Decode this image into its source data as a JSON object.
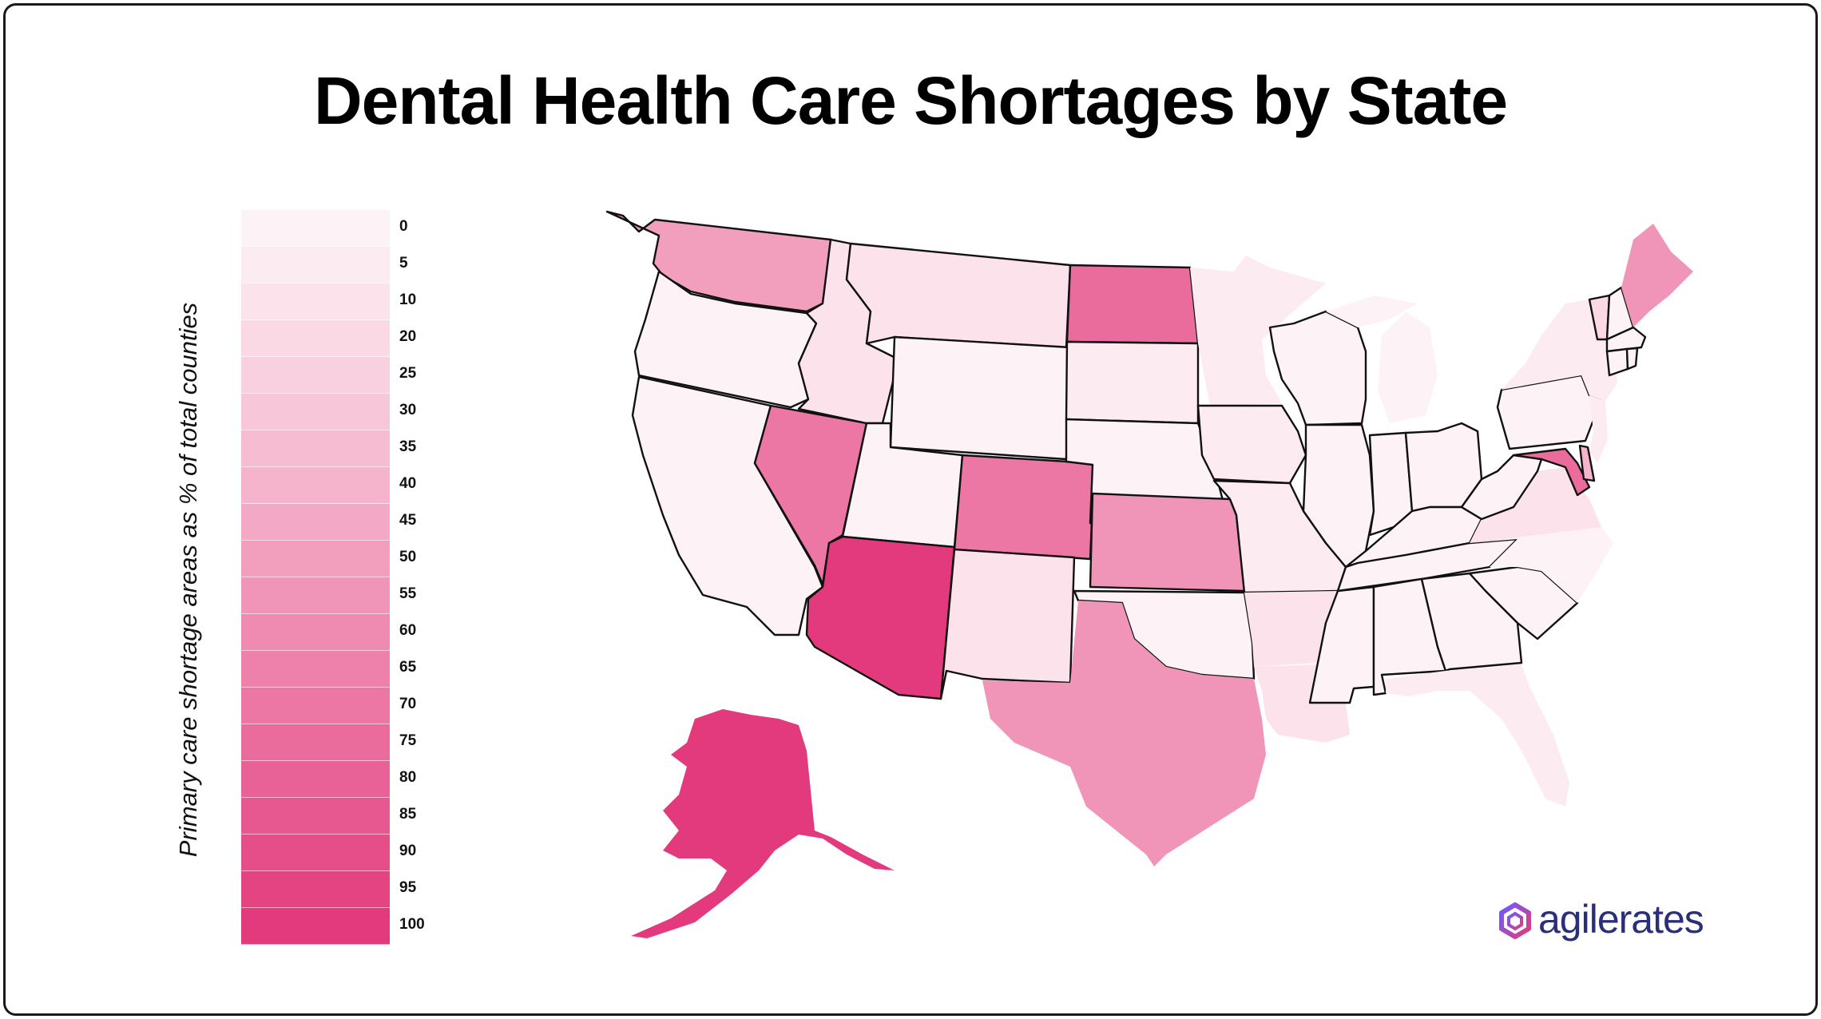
{
  "title": "Dental Health Care Shortages by State",
  "legend": {
    "axis_label": "Primary care shortage areas as % of total counties",
    "levels": [
      {
        "label": "0",
        "color": "#fdf3f6"
      },
      {
        "label": "5",
        "color": "#fcebf1"
      },
      {
        "label": "10",
        "color": "#fbe2eb"
      },
      {
        "label": "20",
        "color": "#fad9e5"
      },
      {
        "label": "25",
        "color": "#f9d0df"
      },
      {
        "label": "30",
        "color": "#f7c6d8"
      },
      {
        "label": "35",
        "color": "#f6bcd2"
      },
      {
        "label": "40",
        "color": "#f5b3cc"
      },
      {
        "label": "45",
        "color": "#f3a9c5"
      },
      {
        "label": "50",
        "color": "#f29fbe"
      },
      {
        "label": "55",
        "color": "#f095b8"
      },
      {
        "label": "60",
        "color": "#ef8bb1"
      },
      {
        "label": "65",
        "color": "#ed81ab"
      },
      {
        "label": "70",
        "color": "#ec77a4"
      },
      {
        "label": "75",
        "color": "#ea6c9d"
      },
      {
        "label": "80",
        "color": "#e96297"
      },
      {
        "label": "85",
        "color": "#e85890"
      },
      {
        "label": "90",
        "color": "#e64e8a"
      },
      {
        "label": "95",
        "color": "#e54483"
      },
      {
        "label": "100",
        "color": "#e33a7d"
      }
    ]
  },
  "map_data": {
    "type": "choropleth",
    "region": "United States",
    "states": {
      "WA": 50,
      "OR": 0,
      "CA": 0,
      "NV": 70,
      "ID": 10,
      "MT": 10,
      "WY": 0,
      "UT": 0,
      "AZ": 100,
      "CO": 70,
      "NM": 10,
      "ND": 75,
      "SD": 5,
      "NE": 0,
      "KS": 55,
      "OK": 0,
      "TX": 55,
      "MN": 5,
      "IA": 5,
      "MO": 5,
      "AR": 10,
      "LA": 10,
      "WI": 0,
      "IL": 0,
      "MI": 0,
      "IN": 0,
      "OH": 0,
      "KY": 0,
      "TN": 0,
      "MS": 0,
      "AL": 0,
      "GA": 0,
      "FL": 5,
      "SC": 0,
      "NC": 0,
      "VA": 10,
      "WV": 0,
      "MD": 75,
      "DE": 40,
      "PA": 0,
      "NJ": 5,
      "NY": 5,
      "VT": 20,
      "NH": 0,
      "ME": 55,
      "MA": 0,
      "CT": 0,
      "RI": 0,
      "AK": 100
    }
  },
  "brand": {
    "name_part1": "agile",
    "name_part2": "rates",
    "icon": "agilerates-logo-icon",
    "color": "#2a2f7a"
  }
}
